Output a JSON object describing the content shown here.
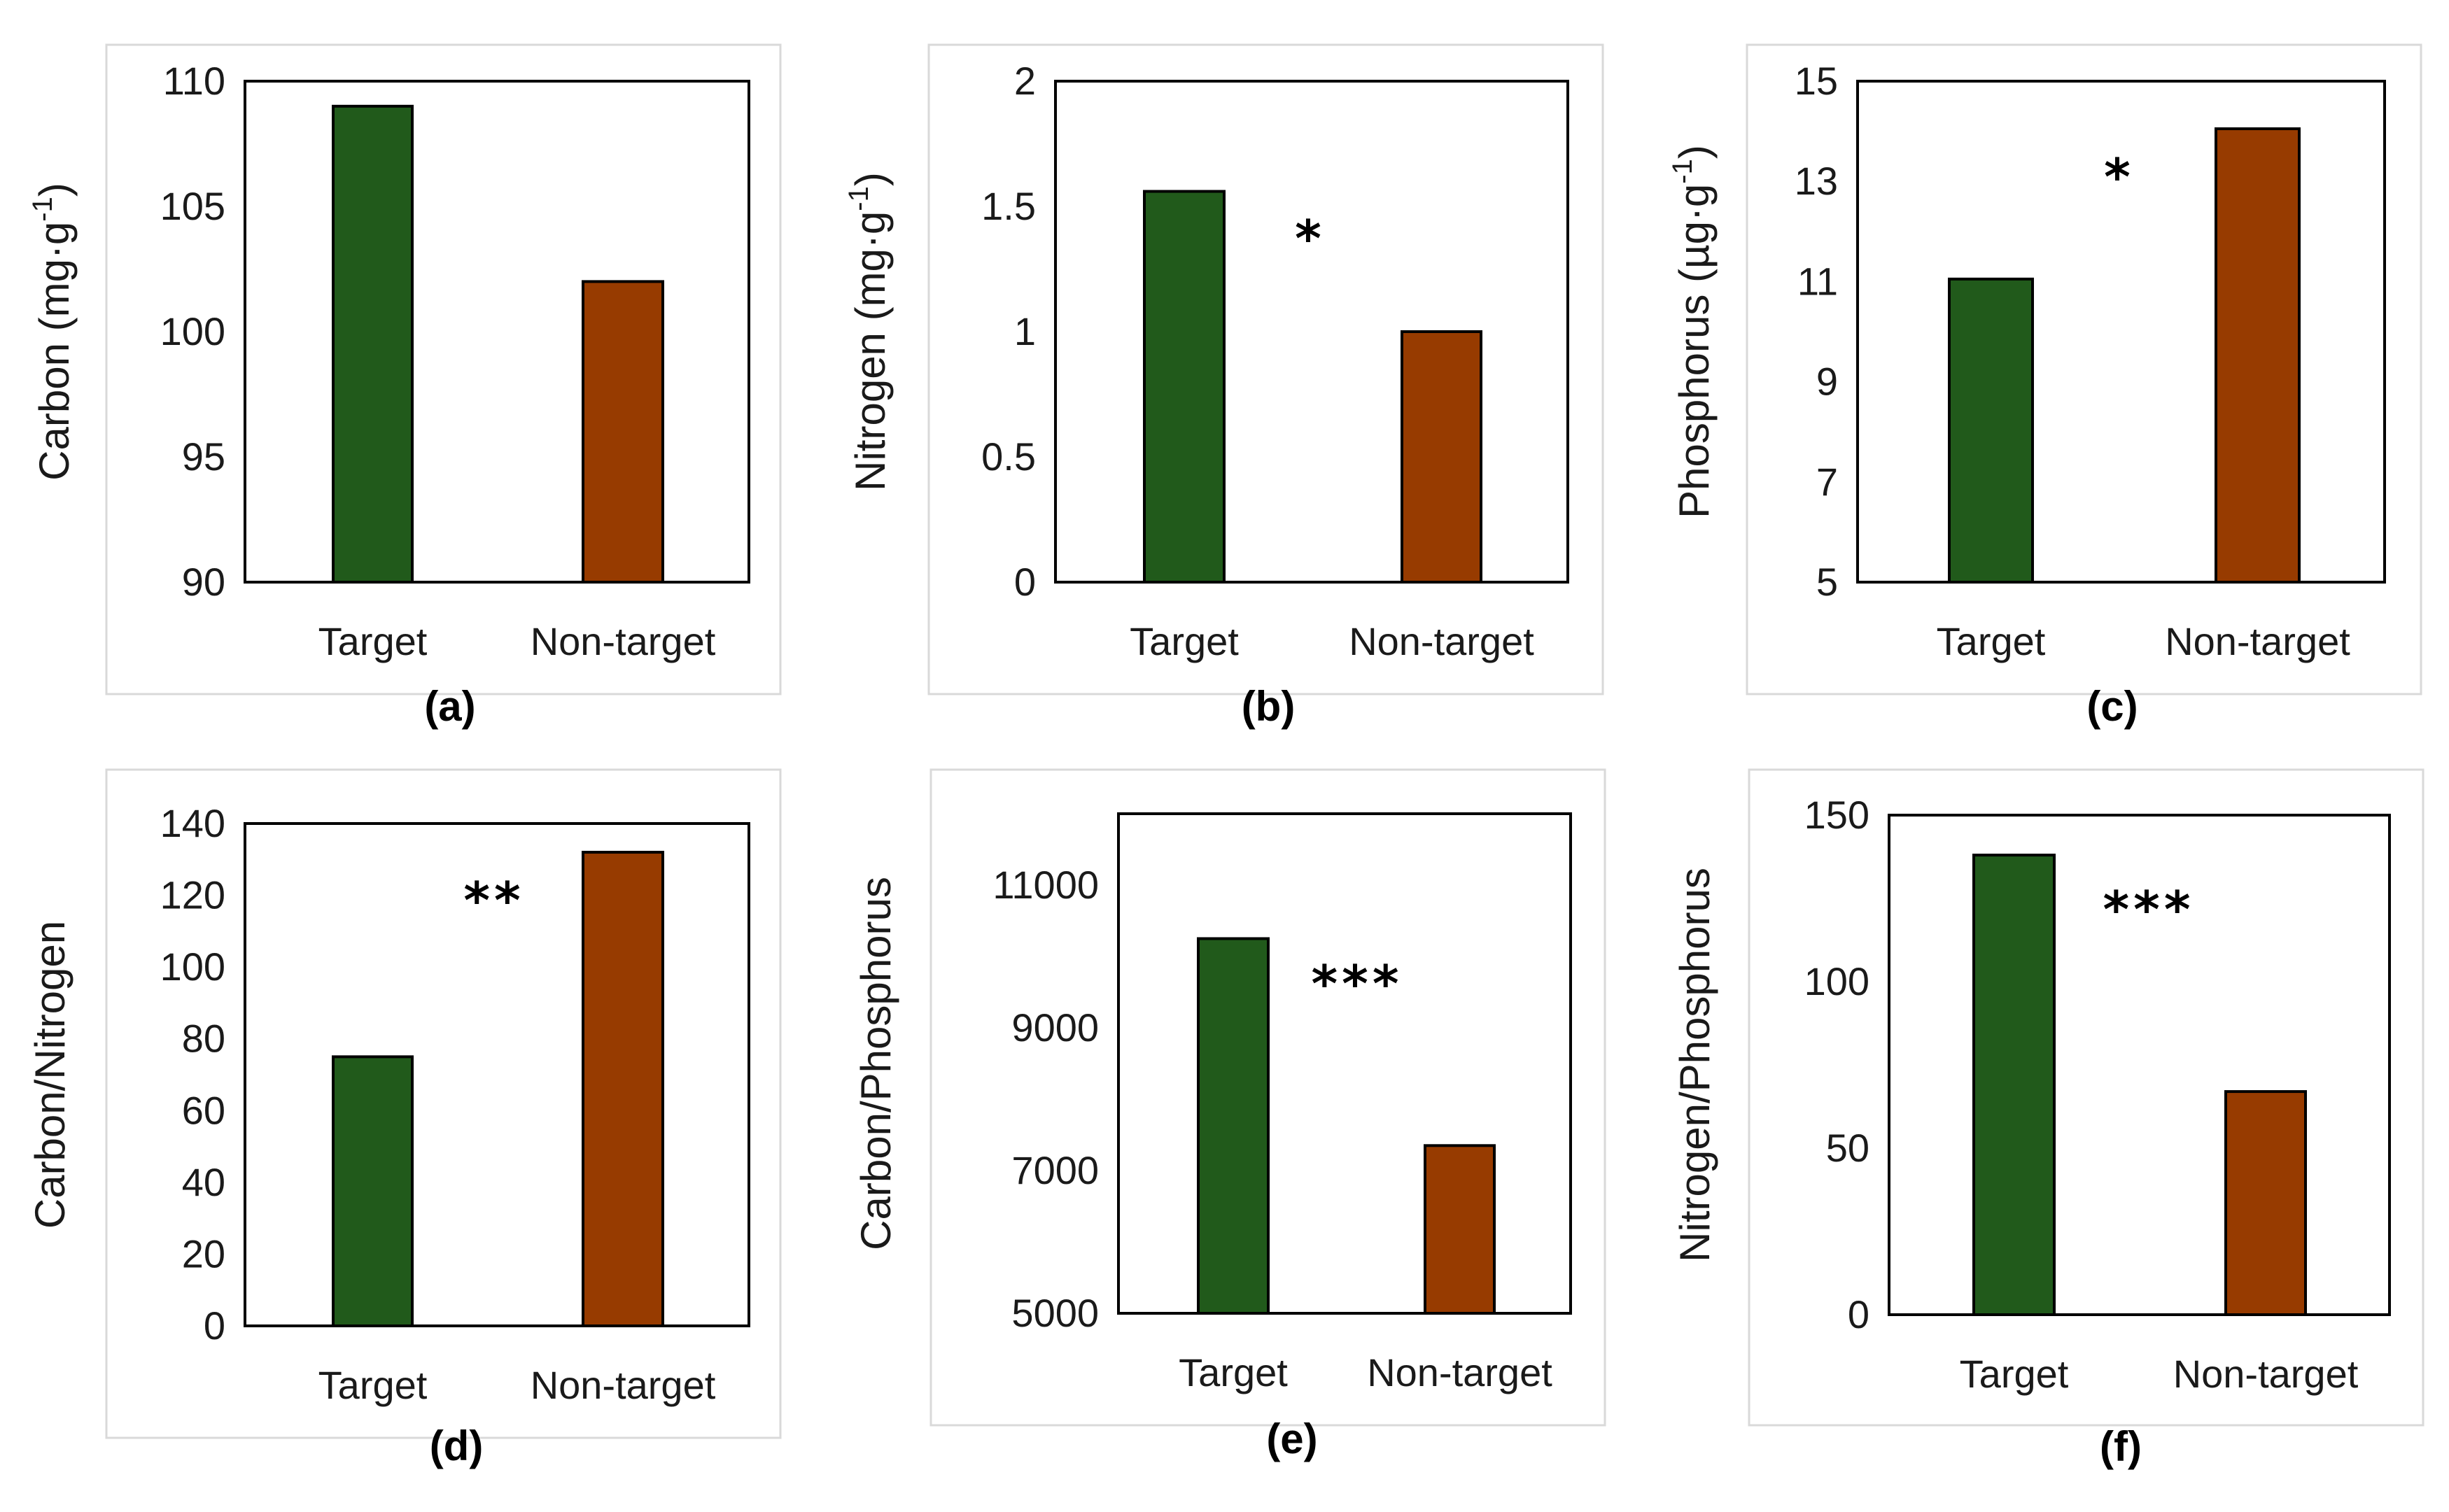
{
  "chart_data": [
    {
      "id": "a",
      "type": "bar",
      "panel_label": "(a)",
      "categories": [
        "Target",
        "Non-target"
      ],
      "values": [
        109.0,
        102.0
      ],
      "colors": [
        "#215a1b",
        "#973b00"
      ],
      "ylabel": "Carbon (mg·g",
      "ylabel_sup": "-1",
      "ylabel_tail": ")",
      "ylim": [
        90,
        110
      ],
      "yticks": [
        90,
        95,
        100,
        105,
        110
      ],
      "ytick_labels": [
        "90",
        "95",
        "100",
        "105",
        "110"
      ],
      "significance": ""
    },
    {
      "id": "b",
      "type": "bar",
      "panel_label": "(b)",
      "categories": [
        "Target",
        "Non-target"
      ],
      "values": [
        1.56,
        1.0
      ],
      "colors": [
        "#215a1b",
        "#973b00"
      ],
      "ylabel": "Nitrogen (mg·g",
      "ylabel_sup": "-1",
      "ylabel_tail": ")",
      "ylim": [
        0,
        2
      ],
      "yticks": [
        0,
        0.5,
        1,
        1.5,
        2
      ],
      "ytick_labels": [
        "0",
        "0.5",
        "1",
        "1.5",
        "2"
      ],
      "significance": "*"
    },
    {
      "id": "c",
      "type": "bar",
      "panel_label": "(c)",
      "categories": [
        "Target",
        "Non-target"
      ],
      "values": [
        11.05,
        14.05
      ],
      "colors": [
        "#215a1b",
        "#973b00"
      ],
      "ylabel": "Phosphorus (µg·g",
      "ylabel_sup": "-1",
      "ylabel_tail": ")",
      "ylim": [
        5,
        15
      ],
      "yticks": [
        5,
        7,
        9,
        11,
        13,
        15
      ],
      "ytick_labels": [
        "5",
        "7",
        "9",
        "11",
        "13",
        "15"
      ],
      "significance": "*"
    },
    {
      "id": "d",
      "type": "bar",
      "panel_label": "(d)",
      "categories": [
        "Target",
        "Non-target"
      ],
      "values": [
        75,
        132
      ],
      "colors": [
        "#215a1b",
        "#973b00"
      ],
      "ylabel": "Carbon/Nitrogen",
      "ylabel_sup": "",
      "ylabel_tail": "",
      "ylim": [
        0,
        140
      ],
      "yticks": [
        0,
        20,
        40,
        60,
        80,
        100,
        120,
        140
      ],
      "ytick_labels": [
        "0",
        "20",
        "40",
        "60",
        "80",
        "100",
        "120",
        "140"
      ],
      "significance": "**"
    },
    {
      "id": "e",
      "type": "bar",
      "panel_label": "(e)",
      "categories": [
        "Target",
        "Non-target"
      ],
      "values": [
        10250,
        7350
      ],
      "colors": [
        "#215a1b",
        "#973b00"
      ],
      "ylabel": "Carbon/Phosphorus",
      "ylabel_sup": "",
      "ylabel_tail": "",
      "ylim": [
        5000,
        12000
      ],
      "yticks": [
        5000,
        7000,
        9000,
        11000
      ],
      "ytick_labels": [
        "5000",
        "7000",
        "9000",
        "11000"
      ],
      "significance": "***"
    },
    {
      "id": "f",
      "type": "bar",
      "panel_label": "(f)",
      "categories": [
        "Target",
        "Non-target"
      ],
      "values": [
        138,
        67
      ],
      "colors": [
        "#215a1b",
        "#973b00"
      ],
      "ylabel": "Nitrogen/Phosphorus",
      "ylabel_sup": "",
      "ylabel_tail": "",
      "ylim": [
        0,
        150
      ],
      "yticks": [
        0,
        50,
        100,
        150
      ],
      "ytick_labels": [
        "0",
        "50",
        "100",
        "150"
      ],
      "significance": "***"
    }
  ]
}
